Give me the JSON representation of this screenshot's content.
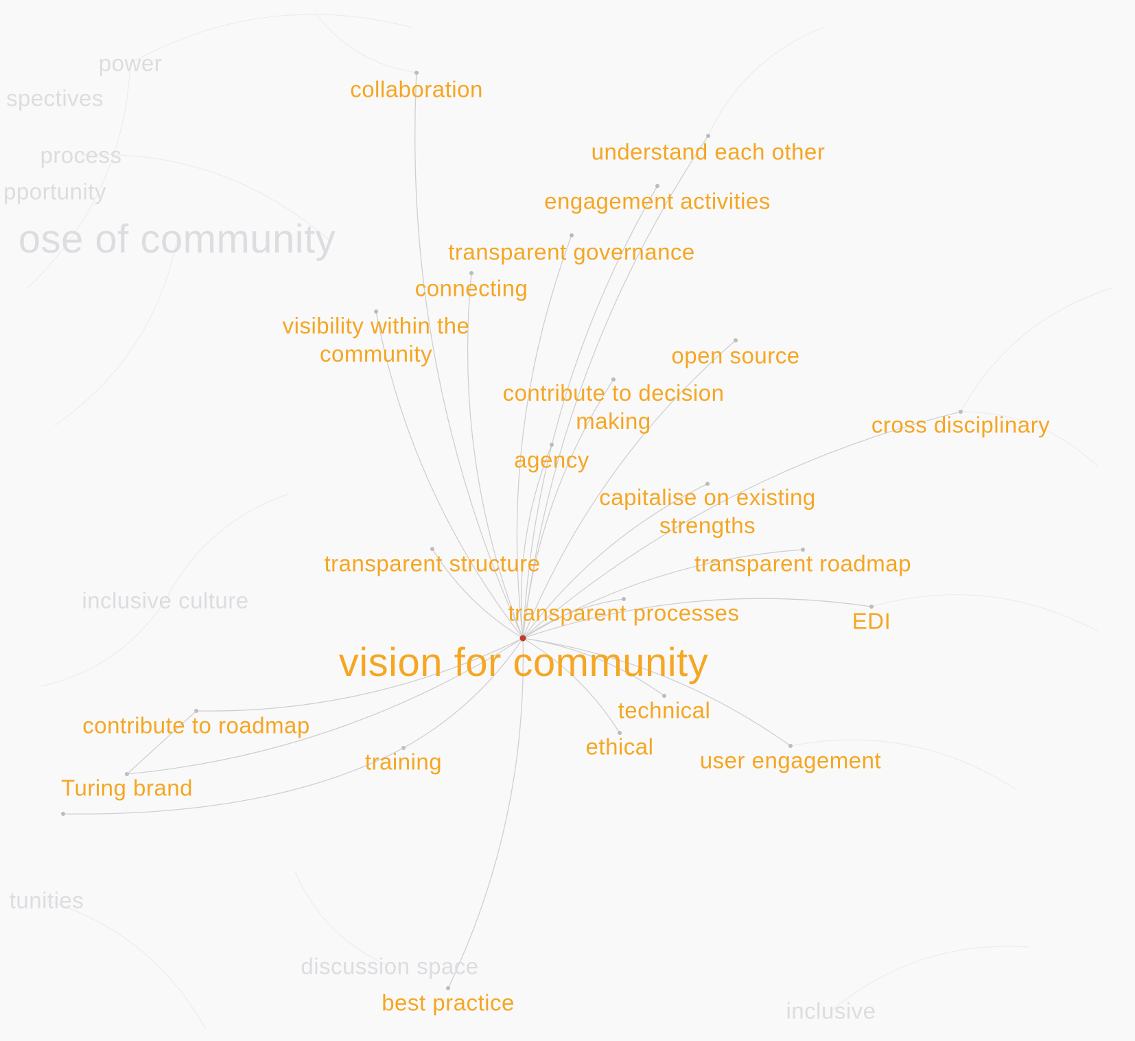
{
  "colors": {
    "background": "#f9f9f9",
    "active_label": "#f5a623",
    "faded_label": "#dcdde0",
    "edge": "#cfcfcf",
    "faded_edge": "#ececec",
    "center_node": "#c0392b"
  },
  "center": {
    "label": "vision for community"
  },
  "connected_terms": [
    {
      "id": "collaboration",
      "label": "collaboration"
    },
    {
      "id": "understand",
      "label": "understand each other"
    },
    {
      "id": "engagement",
      "label": "engagement activities"
    },
    {
      "id": "gov",
      "label": "transparent governance"
    },
    {
      "id": "connecting",
      "label": "connecting"
    },
    {
      "id": "visibility",
      "label": "visibility within the\ncommunity"
    },
    {
      "id": "opensource",
      "label": "open source"
    },
    {
      "id": "decision",
      "label": "contribute to decision\nmaking"
    },
    {
      "id": "cross",
      "label": "cross disciplinary"
    },
    {
      "id": "agency",
      "label": "agency"
    },
    {
      "id": "capitalise",
      "label": "capitalise on existing\nstrengths"
    },
    {
      "id": "structure",
      "label": "transparent structure"
    },
    {
      "id": "roadmap",
      "label": "transparent roadmap"
    },
    {
      "id": "processes",
      "label": "transparent processes"
    },
    {
      "id": "edi",
      "label": "EDI"
    },
    {
      "id": "technical",
      "label": "technical"
    },
    {
      "id": "contribroad",
      "label": "contribute to roadmap"
    },
    {
      "id": "ethical",
      "label": "ethical"
    },
    {
      "id": "user",
      "label": "user engagement"
    },
    {
      "id": "training",
      "label": "training"
    },
    {
      "id": "turing",
      "label": "Turing brand"
    },
    {
      "id": "best",
      "label": "best practice"
    }
  ],
  "background_terms": [
    {
      "id": "power",
      "label": "power"
    },
    {
      "id": "spectives",
      "label": "spectives"
    },
    {
      "id": "process",
      "label": "process"
    },
    {
      "id": "portunity",
      "label": "pportunity"
    },
    {
      "id": "purpose",
      "label": "ose of community"
    },
    {
      "id": "inclusive_culture",
      "label": "inclusive culture"
    },
    {
      "id": "tunities",
      "label": "tunities"
    },
    {
      "id": "discussion",
      "label": "discussion space"
    },
    {
      "id": "inclusive",
      "label": "inclusive"
    }
  ]
}
